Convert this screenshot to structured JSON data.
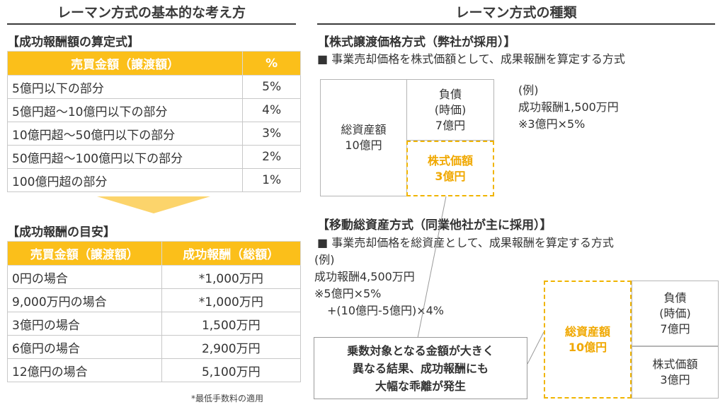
{
  "left": {
    "heading": "レーマン方式の基本的な考え方",
    "formula": {
      "title": "【成功報酬額の算定式】",
      "headers": [
        "売買金額（譲渡額）",
        "%"
      ],
      "rows": [
        [
          "5億円以下の部分",
          "5%"
        ],
        [
          "5億円超～10億円以下の部分",
          "4%"
        ],
        [
          "10億円超～50億円以下の部分",
          "3%"
        ],
        [
          "50億円超～100億円以下の部分",
          "2%"
        ],
        [
          "100億円超の部分",
          "1%"
        ]
      ]
    },
    "guide": {
      "title": "【成功報酬の目安】",
      "headers": [
        "売買金額（譲渡額）",
        "成功報酬（総額）"
      ],
      "rows": [
        [
          "0円の場合",
          "*1,000万円"
        ],
        [
          "9,000万円の場合",
          "*1,000万円"
        ],
        [
          "3億円の場合",
          "1,500万円"
        ],
        [
          "6億円の場合",
          "2,900万円"
        ],
        [
          "12億円の場合",
          "5,100万円"
        ]
      ]
    },
    "footnote": "*最低手数料の適用"
  },
  "right": {
    "heading": "レーマン方式の種類",
    "stock": {
      "title": "【株式譲渡価格方式（弊社が採用）】",
      "desc": "■ 事業売却価格を株式価額として、成果報酬を算定する方式",
      "assets": [
        "総資産額",
        "10億円"
      ],
      "liab": [
        "負債",
        "(時価)",
        "7億円"
      ],
      "equity": [
        "株式価額",
        "3億円"
      ],
      "example": [
        "(例)",
        "成功報酬1,500万円",
        "※3億円×5%"
      ]
    },
    "transfer": {
      "title": "【移動総資産方式（同業他社が主に採用）】",
      "desc": "■ 事業売却価格を総資産として、成果報酬を算定する方式",
      "example": [
        "(例)",
        "成功報酬4,500万円",
        "※5億円×5%",
        "+(10億円-5億円)×4%"
      ],
      "assets": [
        "総資産額",
        "10億円"
      ],
      "liab": [
        "負債",
        "(時価)",
        "7億円"
      ],
      "equity": [
        "株式価額",
        "3億円"
      ]
    },
    "callout": [
      "乗数対象となる金額が大きく",
      "異なる結果、成功報酬にも",
      "大幅な乖離が発生"
    ]
  }
}
